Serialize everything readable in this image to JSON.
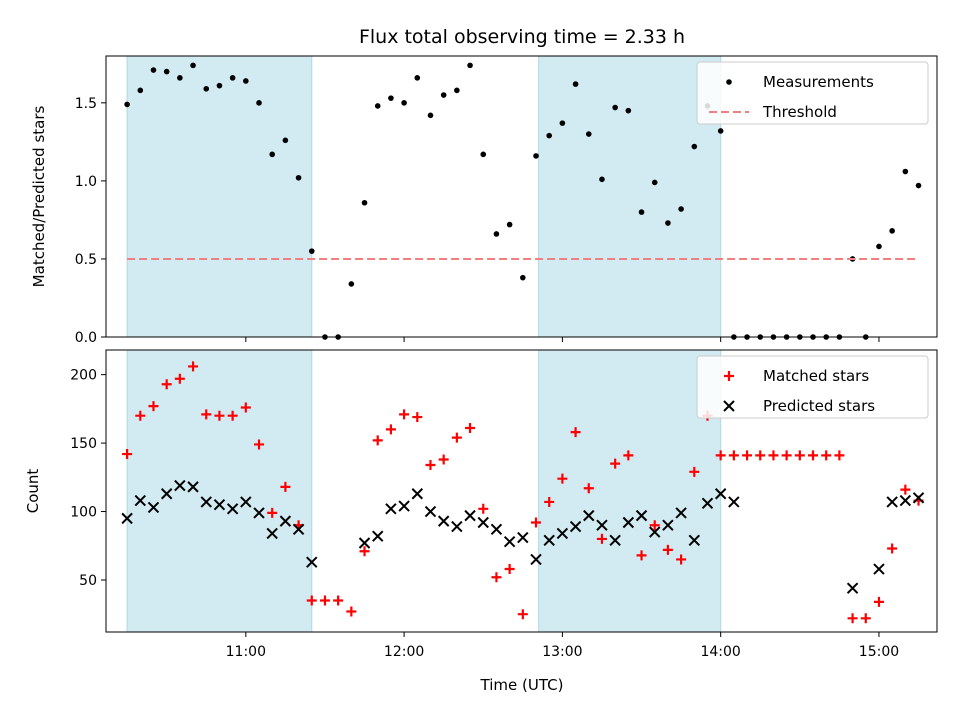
{
  "chart_data": {
    "type": "scatter",
    "title": "Flux total observing time = 2.33 h",
    "xlabel": "Time (UTC)",
    "xlim": [
      "10:07",
      "15:22"
    ],
    "xticks": [
      "11:00",
      "12:00",
      "13:00",
      "14:00",
      "15:00"
    ],
    "shaded_intervals": [
      [
        "10:15",
        "11:25"
      ],
      [
        "12:51",
        "14:00"
      ]
    ],
    "shade_color": "#add8e6",
    "panels": [
      {
        "ylabel": "Matched/Predicted stars",
        "ylim": [
          0,
          1.8
        ],
        "yticks": [
          "0.0",
          "0.5",
          "1.0",
          "1.5"
        ],
        "legend": "top-right",
        "series": [
          {
            "name": "Measurements",
            "marker": "dot",
            "color": "#000000",
            "points": [
              [
                "10:15",
                1.49
              ],
              [
                "10:20",
                1.58
              ],
              [
                "10:25",
                1.71
              ],
              [
                "10:30",
                1.7
              ],
              [
                "10:35",
                1.66
              ],
              [
                "10:40",
                1.74
              ],
              [
                "10:45",
                1.59
              ],
              [
                "10:50",
                1.61
              ],
              [
                "10:55",
                1.66
              ],
              [
                "11:00",
                1.64
              ],
              [
                "11:05",
                1.5
              ],
              [
                "11:10",
                1.17
              ],
              [
                "11:15",
                1.26
              ],
              [
                "11:20",
                1.02
              ],
              [
                "11:25",
                0.55
              ],
              [
                "11:30",
                0.0
              ],
              [
                "11:35",
                0.0
              ],
              [
                "11:40",
                0.34
              ],
              [
                "11:45",
                0.86
              ],
              [
                "11:50",
                1.48
              ],
              [
                "11:55",
                1.53
              ],
              [
                "12:00",
                1.5
              ],
              [
                "12:05",
                1.66
              ],
              [
                "12:10",
                1.42
              ],
              [
                "12:15",
                1.55
              ],
              [
                "12:20",
                1.58
              ],
              [
                "12:25",
                1.74
              ],
              [
                "12:30",
                1.17
              ],
              [
                "12:35",
                0.66
              ],
              [
                "12:40",
                0.72
              ],
              [
                "12:45",
                0.38
              ],
              [
                "12:50",
                1.16
              ],
              [
                "12:55",
                1.29
              ],
              [
                "13:00",
                1.37
              ],
              [
                "13:05",
                1.62
              ],
              [
                "13:10",
                1.3
              ],
              [
                "13:15",
                1.01
              ],
              [
                "13:20",
                1.47
              ],
              [
                "13:25",
                1.45
              ],
              [
                "13:30",
                0.8
              ],
              [
                "13:35",
                0.99
              ],
              [
                "13:40",
                0.73
              ],
              [
                "13:45",
                0.82
              ],
              [
                "13:50",
                1.22
              ],
              [
                "13:55",
                1.48
              ],
              [
                "14:00",
                1.32
              ],
              [
                "14:05",
                0.0
              ],
              [
                "14:10",
                0.0
              ],
              [
                "14:15",
                0.0
              ],
              [
                "14:20",
                0.0
              ],
              [
                "14:25",
                0.0
              ],
              [
                "14:30",
                0.0
              ],
              [
                "14:35",
                0.0
              ],
              [
                "14:40",
                0.0
              ],
              [
                "14:45",
                0.0
              ],
              [
                "14:50",
                0.5
              ],
              [
                "14:55",
                0.0
              ],
              [
                "15:00",
                0.58
              ],
              [
                "15:05",
                0.68
              ],
              [
                "15:10",
                1.06
              ],
              [
                "15:15",
                0.97
              ]
            ]
          },
          {
            "name": "Threshold",
            "marker": "dashed-line",
            "color": "#f08080",
            "points": [
              [
                "10:15",
                0.5
              ],
              [
                "15:15",
                0.5
              ]
            ]
          }
        ]
      },
      {
        "ylabel": "Count",
        "ylim": [
          12,
          218
        ],
        "yticks": [
          "50",
          "100",
          "150",
          "200"
        ],
        "legend": "top-right",
        "series": [
          {
            "name": "Matched stars",
            "marker": "plus",
            "color": "#ff0000",
            "points": [
              [
                "10:15",
                142
              ],
              [
                "10:20",
                170
              ],
              [
                "10:25",
                177
              ],
              [
                "10:30",
                193
              ],
              [
                "10:35",
                197
              ],
              [
                "10:40",
                206
              ],
              [
                "10:45",
                171
              ],
              [
                "10:50",
                170
              ],
              [
                "10:55",
                170
              ],
              [
                "11:00",
                176
              ],
              [
                "11:05",
                149
              ],
              [
                "11:10",
                99
              ],
              [
                "11:15",
                118
              ],
              [
                "11:20",
                90
              ],
              [
                "11:25",
                35
              ],
              [
                "11:30",
                35
              ],
              [
                "11:35",
                35
              ],
              [
                "11:40",
                27
              ],
              [
                "11:45",
                71
              ],
              [
                "11:50",
                152
              ],
              [
                "11:55",
                160
              ],
              [
                "12:00",
                171
              ],
              [
                "12:05",
                169
              ],
              [
                "12:10",
                134
              ],
              [
                "12:15",
                138
              ],
              [
                "12:20",
                154
              ],
              [
                "12:25",
                161
              ],
              [
                "12:30",
                102
              ],
              [
                "12:35",
                52
              ],
              [
                "12:40",
                58
              ],
              [
                "12:45",
                25
              ],
              [
                "12:50",
                92
              ],
              [
                "12:55",
                107
              ],
              [
                "13:00",
                124
              ],
              [
                "13:05",
                158
              ],
              [
                "13:10",
                117
              ],
              [
                "13:15",
                80
              ],
              [
                "13:20",
                135
              ],
              [
                "13:25",
                141
              ],
              [
                "13:30",
                68
              ],
              [
                "13:35",
                90
              ],
              [
                "13:40",
                72
              ],
              [
                "13:45",
                65
              ],
              [
                "13:50",
                129
              ],
              [
                "13:55",
                170
              ],
              [
                "14:00",
                141
              ],
              [
                "14:05",
                141
              ],
              [
                "14:10",
                141
              ],
              [
                "14:15",
                141
              ],
              [
                "14:20",
                141
              ],
              [
                "14:25",
                141
              ],
              [
                "14:30",
                141
              ],
              [
                "14:35",
                141
              ],
              [
                "14:40",
                141
              ],
              [
                "14:45",
                141
              ],
              [
                "14:50",
                22
              ],
              [
                "14:55",
                22
              ],
              [
                "15:00",
                34
              ],
              [
                "15:05",
                73
              ],
              [
                "15:10",
                116
              ],
              [
                "15:15",
                108
              ]
            ]
          },
          {
            "name": "Predicted stars",
            "marker": "x",
            "color": "#000000",
            "points": [
              [
                "10:15",
                95
              ],
              [
                "10:20",
                108
              ],
              [
                "10:25",
                103
              ],
              [
                "10:30",
                113
              ],
              [
                "10:35",
                119
              ],
              [
                "10:40",
                118
              ],
              [
                "10:45",
                107
              ],
              [
                "10:50",
                105
              ],
              [
                "10:55",
                102
              ],
              [
                "11:00",
                107
              ],
              [
                "11:05",
                99
              ],
              [
                "11:10",
                84
              ],
              [
                "11:15",
                93
              ],
              [
                "11:20",
                87
              ],
              [
                "11:25",
                63
              ],
              [
                "11:45",
                77
              ],
              [
                "11:50",
                82
              ],
              [
                "11:55",
                102
              ],
              [
                "12:00",
                104
              ],
              [
                "12:05",
                113
              ],
              [
                "12:10",
                100
              ],
              [
                "12:15",
                93
              ],
              [
                "12:20",
                89
              ],
              [
                "12:25",
                97
              ],
              [
                "12:30",
                92
              ],
              [
                "12:35",
                87
              ],
              [
                "12:40",
                78
              ],
              [
                "12:45",
                81
              ],
              [
                "12:50",
                65
              ],
              [
                "12:55",
                79
              ],
              [
                "13:00",
                84
              ],
              [
                "13:05",
                89
              ],
              [
                "13:10",
                97
              ],
              [
                "13:15",
                90
              ],
              [
                "13:20",
                79
              ],
              [
                "13:25",
                92
              ],
              [
                "13:30",
                97
              ],
              [
                "13:35",
                85
              ],
              [
                "13:40",
                90
              ],
              [
                "13:45",
                99
              ],
              [
                "13:50",
                79
              ],
              [
                "13:55",
                106
              ],
              [
                "14:00",
                113
              ],
              [
                "14:05",
                107
              ],
              [
                "14:50",
                44
              ],
              [
                "15:00",
                58
              ],
              [
                "15:05",
                107
              ],
              [
                "15:10",
                108
              ],
              [
                "15:15",
                110
              ]
            ]
          }
        ]
      }
    ]
  }
}
